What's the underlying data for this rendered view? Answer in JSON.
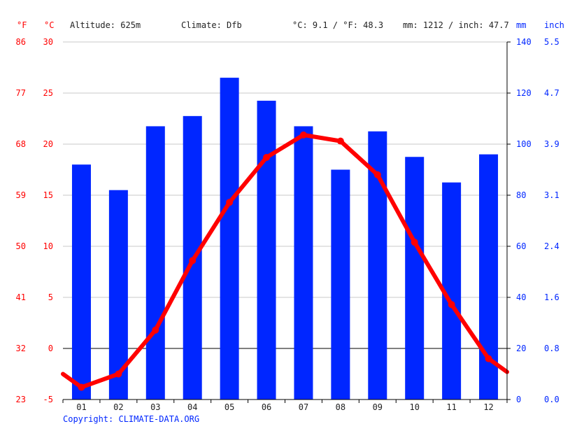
{
  "header": {
    "unit_f": "°F",
    "unit_c": "°C",
    "altitude": "Altitude: 625m",
    "climate": "Climate: Dfb",
    "temp_avg": "°C: 9.1 / °F: 48.3",
    "precip_total": "mm: 1212 / inch: 47.7",
    "unit_mm": "mm",
    "unit_inch": "inch"
  },
  "footer": {
    "copyright": "Copyright: CLIMATE-DATA.ORG"
  },
  "colors": {
    "temperature": "#ff0000",
    "precipitation": "#0026ff",
    "grid": "#c8c8c8",
    "zero_line": "#000000"
  },
  "chart_data": {
    "type": "bar",
    "categories": [
      "01",
      "02",
      "03",
      "04",
      "05",
      "06",
      "07",
      "08",
      "09",
      "10",
      "11",
      "12"
    ],
    "grid": true,
    "series": [
      {
        "type": "bar",
        "axis": "right",
        "unit": "mm",
        "values": [
          92,
          82,
          107,
          111,
          126,
          117,
          107,
          90,
          105,
          95,
          85,
          96
        ]
      },
      {
        "type": "line",
        "axis": "left",
        "unit": "°C",
        "values": [
          -3.8,
          -2.5,
          1.8,
          8.6,
          14.3,
          18.7,
          20.9,
          20.3,
          17.0,
          10.4,
          4.3,
          -1.0
        ],
        "edge_start": -2.5,
        "edge_end": -2.3
      }
    ],
    "y_left": {
      "unit": "°C",
      "ylim": [
        -5,
        30
      ],
      "ticks": [
        "-5",
        "0",
        "5",
        "10",
        "15",
        "20",
        "25",
        "30"
      ],
      "ticks_f": [
        "23",
        "32",
        "41",
        "50",
        "59",
        "68",
        "77",
        "86"
      ]
    },
    "y_right": {
      "unit": "mm",
      "ylim": [
        0,
        140
      ],
      "ticks": [
        "0",
        "20",
        "40",
        "60",
        "80",
        "100",
        "120",
        "140"
      ],
      "ticks_inch": [
        "0.0",
        "0.8",
        "1.6",
        "2.4",
        "3.1",
        "3.9",
        "4.7",
        "5.5"
      ]
    }
  }
}
